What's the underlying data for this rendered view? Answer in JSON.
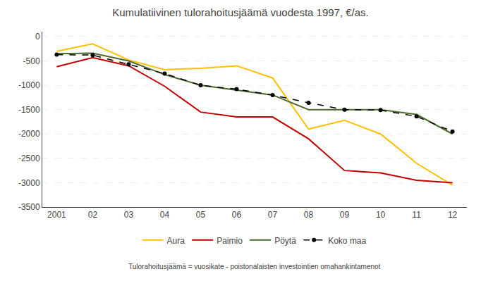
{
  "chart_data": {
    "type": "line",
    "title": "Kumulatiivinen tulorahoitusjäämä vuodesta 1997, €/as.",
    "subtitle": "Tulorahoitusjäämä = vuosikate - poistonalaisten investointien omahankintamenot",
    "categories": [
      "2001",
      "02",
      "03",
      "04",
      "05",
      "06",
      "07",
      "08",
      "09",
      "10",
      "11",
      "12"
    ],
    "series": [
      {
        "name": "Aura",
        "color": "#FFC000",
        "line_style": "solid",
        "values": [
          -300,
          -150,
          -480,
          -680,
          -650,
          -600,
          -850,
          -1900,
          -1720,
          -2000,
          -2600,
          -3050
        ]
      },
      {
        "name": "Paimio",
        "color": "#C00000",
        "line_style": "solid",
        "values": [
          -620,
          -430,
          -600,
          -1020,
          -1550,
          -1650,
          -1650,
          -2100,
          -2750,
          -2800,
          -2950,
          -3000
        ]
      },
      {
        "name": "Pöytä",
        "color": "#4E6B2E",
        "line_style": "solid",
        "values": [
          -350,
          -340,
          -500,
          -780,
          -1000,
          -1100,
          -1200,
          -1500,
          -1500,
          -1500,
          -1600,
          -2000
        ]
      },
      {
        "name": "Koko maa",
        "color": "#000000",
        "line_style": "dashed",
        "marker": "circle",
        "values": [
          -370,
          -380,
          -570,
          -760,
          -1000,
          -1080,
          -1200,
          -1360,
          -1500,
          -1510,
          -1640,
          -1950
        ]
      }
    ],
    "ylim": [
      -3500,
      100
    ],
    "yticks": [
      0,
      -500,
      -1000,
      -1500,
      -2000,
      -2500,
      -3000,
      -3500
    ],
    "grid": true,
    "legend": "bottom"
  }
}
